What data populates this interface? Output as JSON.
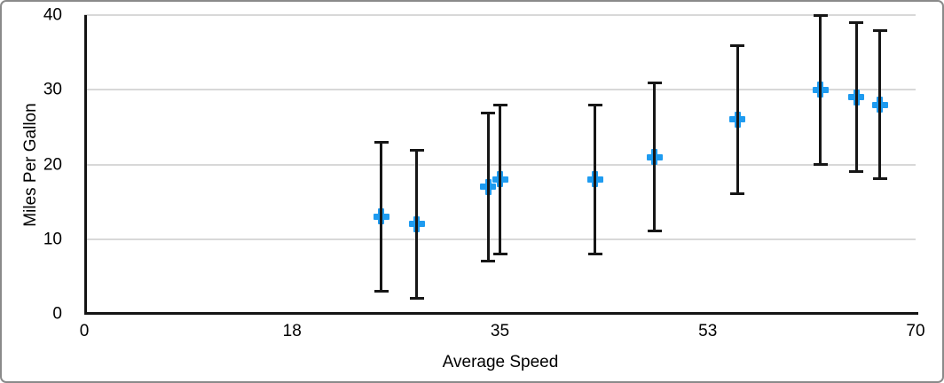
{
  "chart_data": {
    "type": "scatter",
    "title": "",
    "xlabel": "Average Speed",
    "ylabel": "Miles Per Gallon",
    "xlim": [
      0,
      70
    ],
    "ylim": [
      0,
      40
    ],
    "x_ticks": [
      {
        "pos": 0,
        "label": "0"
      },
      {
        "pos": 17.5,
        "label": "18"
      },
      {
        "pos": 35,
        "label": "35"
      },
      {
        "pos": 52.5,
        "label": "53"
      },
      {
        "pos": 70,
        "label": "70"
      }
    ],
    "y_ticks": [
      {
        "pos": 0,
        "label": "0"
      },
      {
        "pos": 10,
        "label": "10"
      },
      {
        "pos": 20,
        "label": "20"
      },
      {
        "pos": 30,
        "label": "30"
      },
      {
        "pos": 40,
        "label": "40"
      }
    ],
    "grid": "horizontal-only",
    "legend": "none",
    "marker_shape": "plus",
    "error_bars": {
      "direction": "vertical",
      "plus": 10,
      "minus": 10
    },
    "colors": {
      "marker": "#1e9bf0",
      "axis_line": "#141414",
      "error_bar": "#161616",
      "gridline": "#d8d8d8",
      "text": "#000000",
      "frame_border": "#8a8a8a",
      "background": "#ffffff"
    },
    "points": [
      {
        "x": 25,
        "y": 13,
        "y_low": 3,
        "y_high": 23
      },
      {
        "x": 28,
        "y": 12,
        "y_low": 2,
        "y_high": 22
      },
      {
        "x": 34,
        "y": 17,
        "y_low": 7,
        "y_high": 27
      },
      {
        "x": 35,
        "y": 18,
        "y_low": 8,
        "y_high": 28
      },
      {
        "x": 43,
        "y": 18,
        "y_low": 8,
        "y_high": 28
      },
      {
        "x": 48,
        "y": 21,
        "y_low": 11,
        "y_high": 31
      },
      {
        "x": 55,
        "y": 26,
        "y_low": 16,
        "y_high": 36
      },
      {
        "x": 62,
        "y": 30,
        "y_low": 20,
        "y_high": 40
      },
      {
        "x": 65,
        "y": 29,
        "y_low": 19,
        "y_high": 39
      },
      {
        "x": 67,
        "y": 28,
        "y_low": 18,
        "y_high": 38
      }
    ]
  }
}
